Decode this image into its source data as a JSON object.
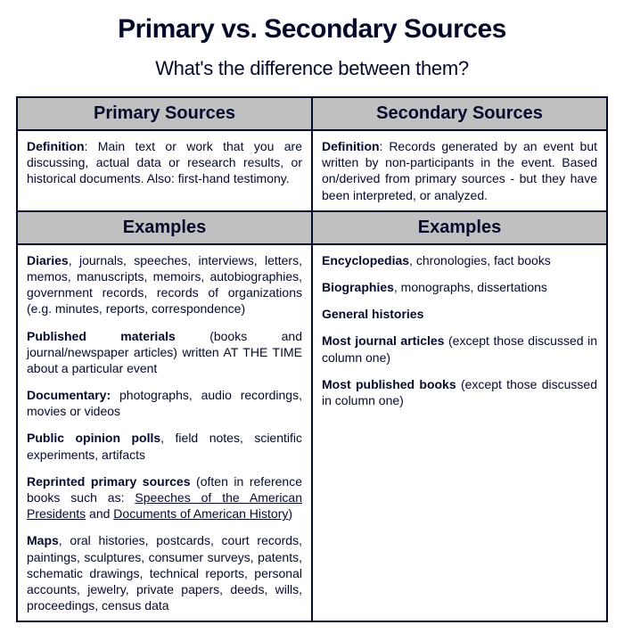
{
  "title": "Primary vs. Secondary Sources",
  "subtitle": "What's the difference between them?",
  "colors": {
    "text": "#050a2c",
    "header_bg": "#c0c0c0",
    "border": "#050a2c",
    "page_bg": "#ffffff"
  },
  "typography": {
    "title_fontsize": 30,
    "subtitle_fontsize": 22,
    "header_fontsize": 20,
    "body_fontsize": 14
  },
  "table": {
    "columns": [
      {
        "header": "Primary Sources",
        "subheader": "Examples"
      },
      {
        "header": "Secondary Sources",
        "subheader": "Examples"
      }
    ],
    "definitions": {
      "primary": {
        "label": "Definition",
        "text": ": Main text or work that you are discussing, actual data or research results, or historical documents. Also: first-hand testimony."
      },
      "secondary": {
        "label": "Definition",
        "text": ": Records generated by an event but written by non-participants in the event. Based on/derived from primary sources - but they have been interpreted, or analyzed."
      }
    },
    "examples": {
      "primary": [
        {
          "bold": "Diaries",
          "rest": ", journals, speeches, interviews, letters, memos, manuscripts, memoirs, autobiographies, government records, records of organizations (e.g. minutes, reports, correspondence)"
        },
        {
          "bold": "Published materials",
          "rest": " (books and journal/newspaper articles) written AT THE TIME about a particular event"
        },
        {
          "bold": "Documentary:",
          "rest": " photographs, audio recordings, movies or videos"
        },
        {
          "bold": "Public opinion polls",
          "rest": ", field notes, scientific experiments, artifacts"
        },
        {
          "bold": "Reprinted primary sources",
          "rest_before": " (often in reference books such as: ",
          "u1": "Speeches of the American Presidents",
          "mid": " and ",
          "u2": "Documents of American History",
          "rest_after": ")"
        },
        {
          "bold": "Maps",
          "rest": ", oral histories, postcards, court records, paintings, sculptures, consumer surveys, patents, schematic drawings, technical reports, personal accounts, jewelry, private papers, deeds, wills, proceedings, census data"
        }
      ],
      "secondary": [
        {
          "bold": "Encyclopedias",
          "rest": ", chronologies, fact books"
        },
        {
          "bold": "Biographies",
          "rest": ", monographs, dissertations"
        },
        {
          "bold": "General histories",
          "rest": ""
        },
        {
          "bold": "Most journal articles",
          "rest": " (except those discussed in column one)"
        },
        {
          "bold": "Most published books",
          "rest": " (except those discussed in column one)"
        }
      ]
    }
  }
}
